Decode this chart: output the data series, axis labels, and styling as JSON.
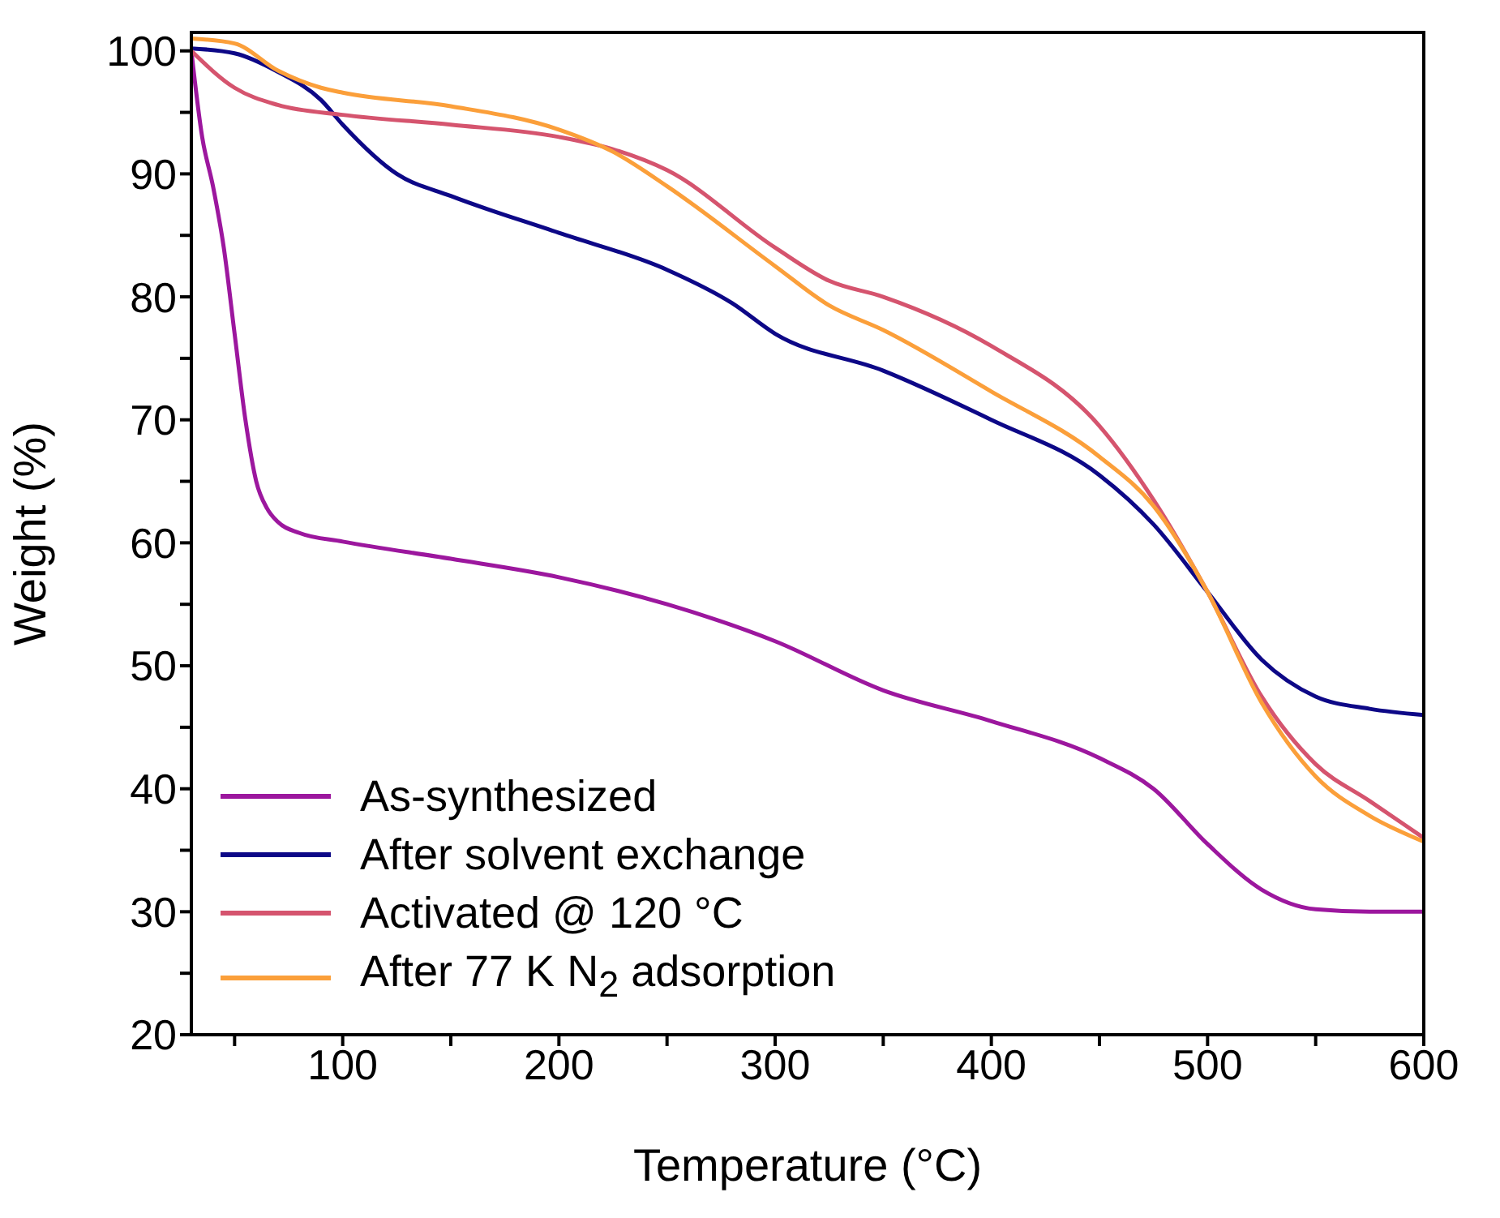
{
  "chart_data": {
    "type": "line",
    "xlabel": "Temperature (°C)",
    "ylabel": "Weight (%)",
    "xlim": [
      30,
      600
    ],
    "ylim": [
      20,
      101.5
    ],
    "xticks": [
      {
        "value": 50,
        "label": null
      },
      100,
      {
        "value": 150,
        "label": null
      },
      200,
      {
        "value": 250,
        "label": null
      },
      300,
      {
        "value": 350,
        "label": null
      },
      400,
      {
        "value": 450,
        "label": null
      },
      500,
      {
        "value": 550,
        "label": null
      },
      600
    ],
    "yticks": [
      20,
      {
        "value": 25,
        "label": null
      },
      30,
      {
        "value": 35,
        "label": null
      },
      40,
      {
        "value": 45,
        "label": null
      },
      50,
      {
        "value": 55,
        "label": null
      },
      60,
      {
        "value": 65,
        "label": null
      },
      70,
      {
        "value": 75,
        "label": null
      },
      80,
      {
        "value": 85,
        "label": null
      },
      90,
      {
        "value": 95,
        "label": null
      },
      100
    ],
    "grid": false,
    "legend": "bottom left",
    "marker": "none",
    "line_style": "solid",
    "series": [
      {
        "name": "As-synthesized",
        "color": "#9c179e",
        "x": [
          30,
          35,
          40,
          45,
          50,
          55,
          60,
          65,
          70,
          80,
          100,
          150,
          200,
          250,
          300,
          350,
          400,
          450,
          475,
          500,
          525,
          550,
          575,
          600
        ],
        "values": [
          100,
          93,
          89,
          84,
          77,
          70,
          65,
          62.8,
          61.7,
          60.8,
          60.1,
          58.7,
          57.2,
          55,
          52,
          48,
          45.5,
          42.5,
          40,
          35.5,
          31.8,
          30.2,
          30,
          30
        ]
      },
      {
        "name": "After solvent exchange",
        "color": "#0d0887",
        "x": [
          30,
          50,
          70,
          90,
          100,
          125,
          150,
          200,
          250,
          280,
          300,
          350,
          400,
          450,
          475,
          500,
          525,
          550,
          575,
          600
        ],
        "values": [
          100.2,
          99.8,
          98.3,
          96,
          94,
          90,
          88.2,
          85.2,
          82.2,
          79.5,
          77,
          74,
          70,
          65.5,
          61.5,
          56,
          50.5,
          47.5,
          46.5,
          46
        ]
      },
      {
        "name": "Activated @ 120 °C",
        "color": "#d5546e",
        "x": [
          30,
          50,
          70,
          100,
          150,
          200,
          225,
          250,
          300,
          325,
          350,
          400,
          450,
          475,
          500,
          525,
          550,
          575,
          600
        ],
        "values": [
          100,
          97,
          95.6,
          94.8,
          94,
          93,
          92,
          90.3,
          84,
          81.3,
          80,
          76,
          69.5,
          63.5,
          56,
          47.5,
          42,
          39,
          36
        ]
      },
      {
        "name": "After 77 K N$_{2}$ adsorption",
        "color": "#fb9f3a",
        "x": [
          30,
          50,
          70,
          90,
          100,
          150,
          200,
          225,
          250,
          300,
          325,
          350,
          400,
          450,
          475,
          500,
          525,
          550,
          575,
          600
        ],
        "values": [
          101,
          100.6,
          98.4,
          97,
          96.6,
          95.5,
          93.6,
          91.8,
          89,
          82.5,
          79.3,
          77.3,
          72.3,
          67,
          63,
          56,
          47,
          41,
          37.8,
          35.7
        ]
      }
    ]
  }
}
